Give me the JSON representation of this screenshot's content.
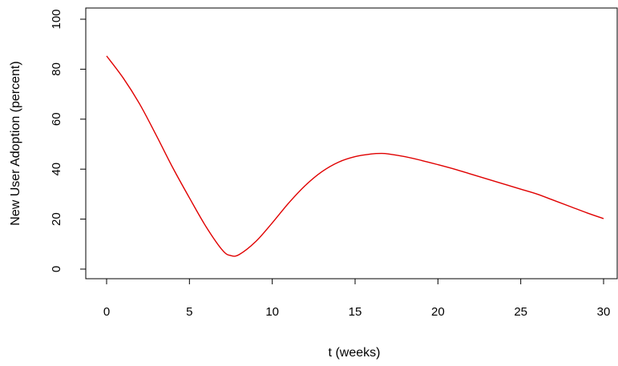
{
  "chart_data": {
    "type": "line",
    "title": "",
    "xlabel": "t (weeks)",
    "ylabel": "New User Adoption (percent)",
    "xlim": [
      0,
      30
    ],
    "ylim": [
      0,
      100
    ],
    "xticks": [
      0,
      5,
      10,
      15,
      20,
      25,
      30
    ],
    "yticks": [
      0,
      20,
      40,
      60,
      80,
      100
    ],
    "grid": false,
    "series": [
      {
        "color": "#e00000",
        "x": [
          0,
          1,
          2,
          3,
          4,
          5,
          6,
          7,
          7.5,
          8,
          9,
          10,
          11,
          12,
          13,
          14,
          15,
          16,
          16.6,
          17,
          18,
          19,
          20,
          21,
          22,
          23,
          24,
          25,
          26,
          27,
          28,
          29,
          30
        ],
        "y": [
          85.3,
          76.5,
          66.0,
          53.5,
          40.5,
          28.5,
          17.0,
          7.5,
          5.4,
          5.8,
          11.0,
          18.5,
          26.5,
          33.5,
          39.0,
          42.8,
          45.0,
          46.1,
          46.3,
          46.1,
          45.0,
          43.5,
          41.8,
          40.0,
          38.0,
          36.0,
          34.0,
          32.0,
          30.0,
          27.5,
          25.0,
          22.5,
          20.2
        ]
      }
    ]
  }
}
